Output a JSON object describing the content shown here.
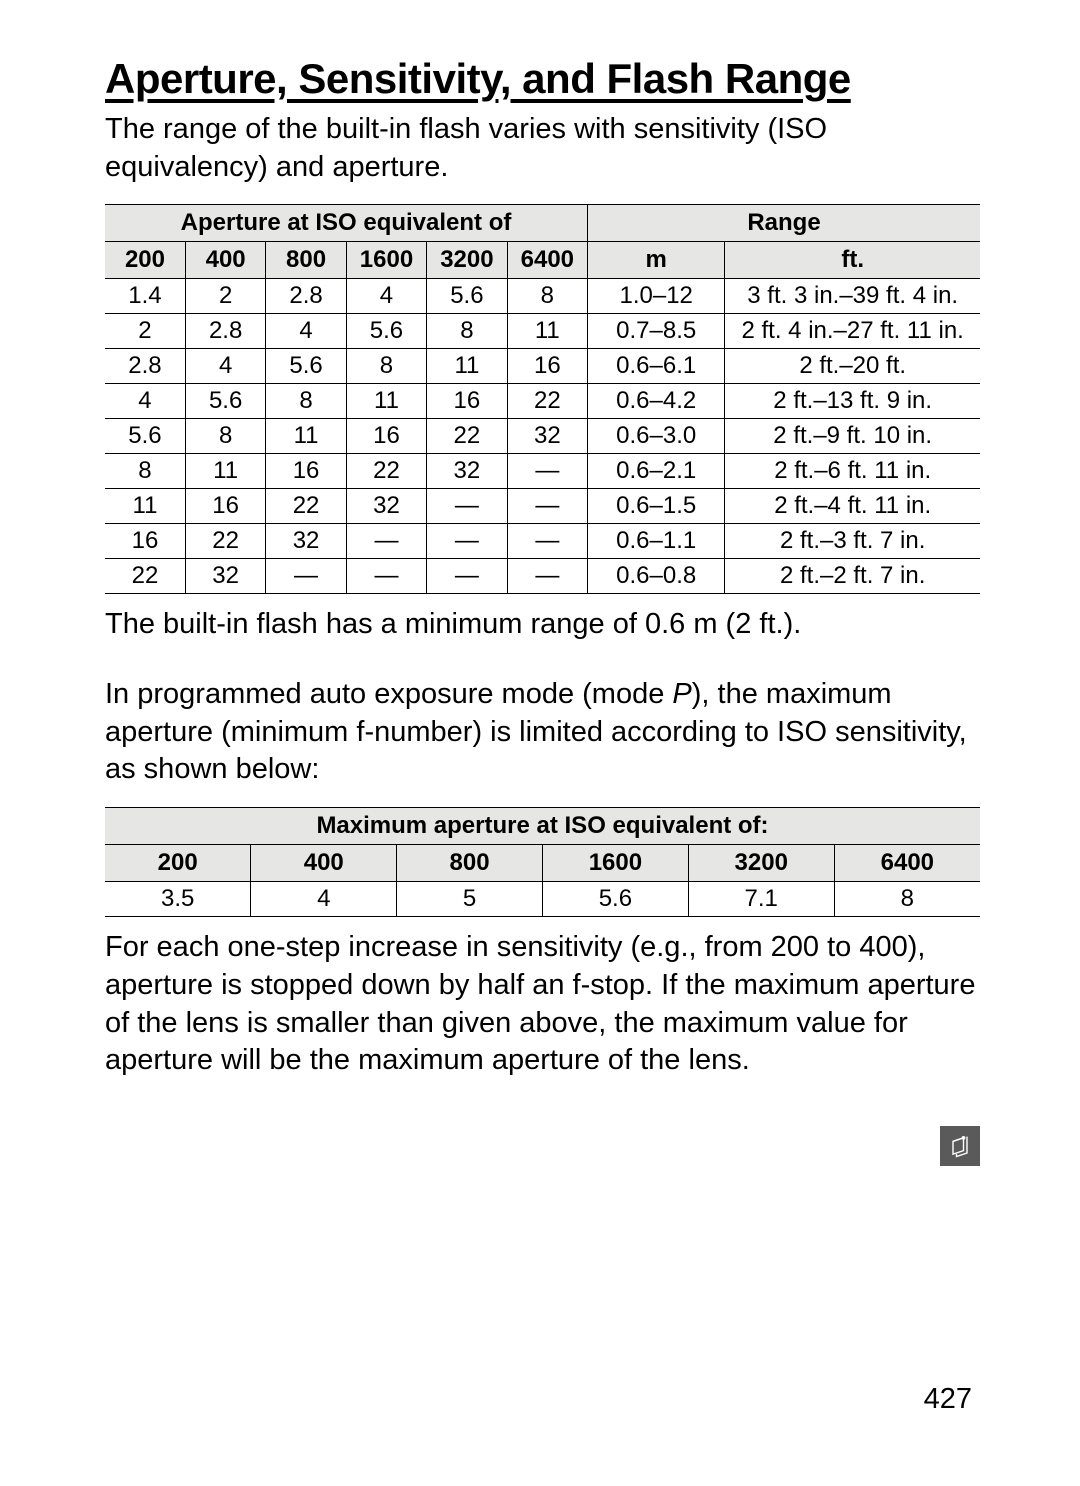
{
  "title": "Aperture, Sensitivity, and Flash Range",
  "intro": "The range of the built-in flash varies with sensitivity (ISO equivalency) and aperture.",
  "table1": {
    "header_aperture": "Aperture at ISO equivalent of",
    "header_range": "Range",
    "columns": [
      "200",
      "400",
      "800",
      "1600",
      "3200",
      "6400",
      "m",
      "ft."
    ],
    "rows": [
      [
        "1.4",
        "2",
        "2.8",
        "4",
        "5.6",
        "8",
        "1.0–12",
        "3 ft. 3 in.–39 ft. 4 in."
      ],
      [
        "2",
        "2.8",
        "4",
        "5.6",
        "8",
        "11",
        "0.7–8.5",
        "2 ft. 4 in.–27 ft. 11 in."
      ],
      [
        "2.8",
        "4",
        "5.6",
        "8",
        "11",
        "16",
        "0.6–6.1",
        "2 ft.–20 ft."
      ],
      [
        "4",
        "5.6",
        "8",
        "11",
        "16",
        "22",
        "0.6–4.2",
        "2 ft.–13 ft. 9 in."
      ],
      [
        "5.6",
        "8",
        "11",
        "16",
        "22",
        "32",
        "0.6–3.0",
        "2 ft.–9 ft. 10 in."
      ],
      [
        "8",
        "11",
        "16",
        "22",
        "32",
        "—",
        "0.6–2.1",
        "2 ft.–6 ft. 11 in."
      ],
      [
        "11",
        "16",
        "22",
        "32",
        "—",
        "—",
        "0.6–1.5",
        "2 ft.–4 ft. 11 in."
      ],
      [
        "16",
        "22",
        "32",
        "—",
        "—",
        "—",
        "0.6–1.1",
        "2 ft.–3 ft. 7 in."
      ],
      [
        "22",
        "32",
        "—",
        "—",
        "—",
        "—",
        "0.6–0.8",
        "2 ft.–2 ft. 7 in."
      ]
    ]
  },
  "after_table1": "The built-in flash has a minimum range of 0.6 m (2 ft.).",
  "para2_pre": "In programmed auto exposure mode (mode ",
  "para2_p": "P",
  "para2_post": "), the maximum aperture (minimum f-number) is limited according to ISO sensitivity, as shown below:",
  "table2": {
    "header": "Maximum aperture at ISO equivalent of:",
    "columns": [
      "200",
      "400",
      "800",
      "1600",
      "3200",
      "6400"
    ],
    "row": [
      "3.5",
      "4",
      "5",
      "5.6",
      "7.1",
      "8"
    ]
  },
  "after_table2": "For each one-step increase in sensitivity (e.g., from 200 to 400), aperture is stopped down by half an f-stop.   If the maximum aperture of the lens is smaller than given above, the maximum value for aperture will be the maximum aperture of the lens.",
  "page_number": "427"
}
